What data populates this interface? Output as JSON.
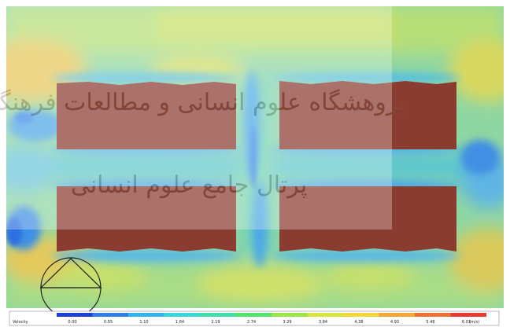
{
  "legend": {
    "title": "Velocity",
    "unit": "(m/s)",
    "ticks": [
      "0.00",
      "0.55",
      "1.10",
      "1.64",
      "2.19",
      "2.74",
      "3.29",
      "3.84",
      "4.38",
      "4.93",
      "5.48",
      "6.03"
    ],
    "colors": [
      "#1f3fd6",
      "#2f7de8",
      "#33b4ee",
      "#37d7d8",
      "#3ee0a8",
      "#56e36a",
      "#9be44a",
      "#d6e63a",
      "#f3d63a",
      "#f5a736",
      "#f07030",
      "#e83a2e"
    ]
  },
  "watermark": {
    "line1": "پژوهشگاه علوم انسانی و مطالعات فرهنگی",
    "line2": "پرتال جامع علوم انسانی"
  },
  "colors": {
    "field": "#8fd6a2",
    "building": "#8a3c31",
    "frame": "#ffffff"
  }
}
